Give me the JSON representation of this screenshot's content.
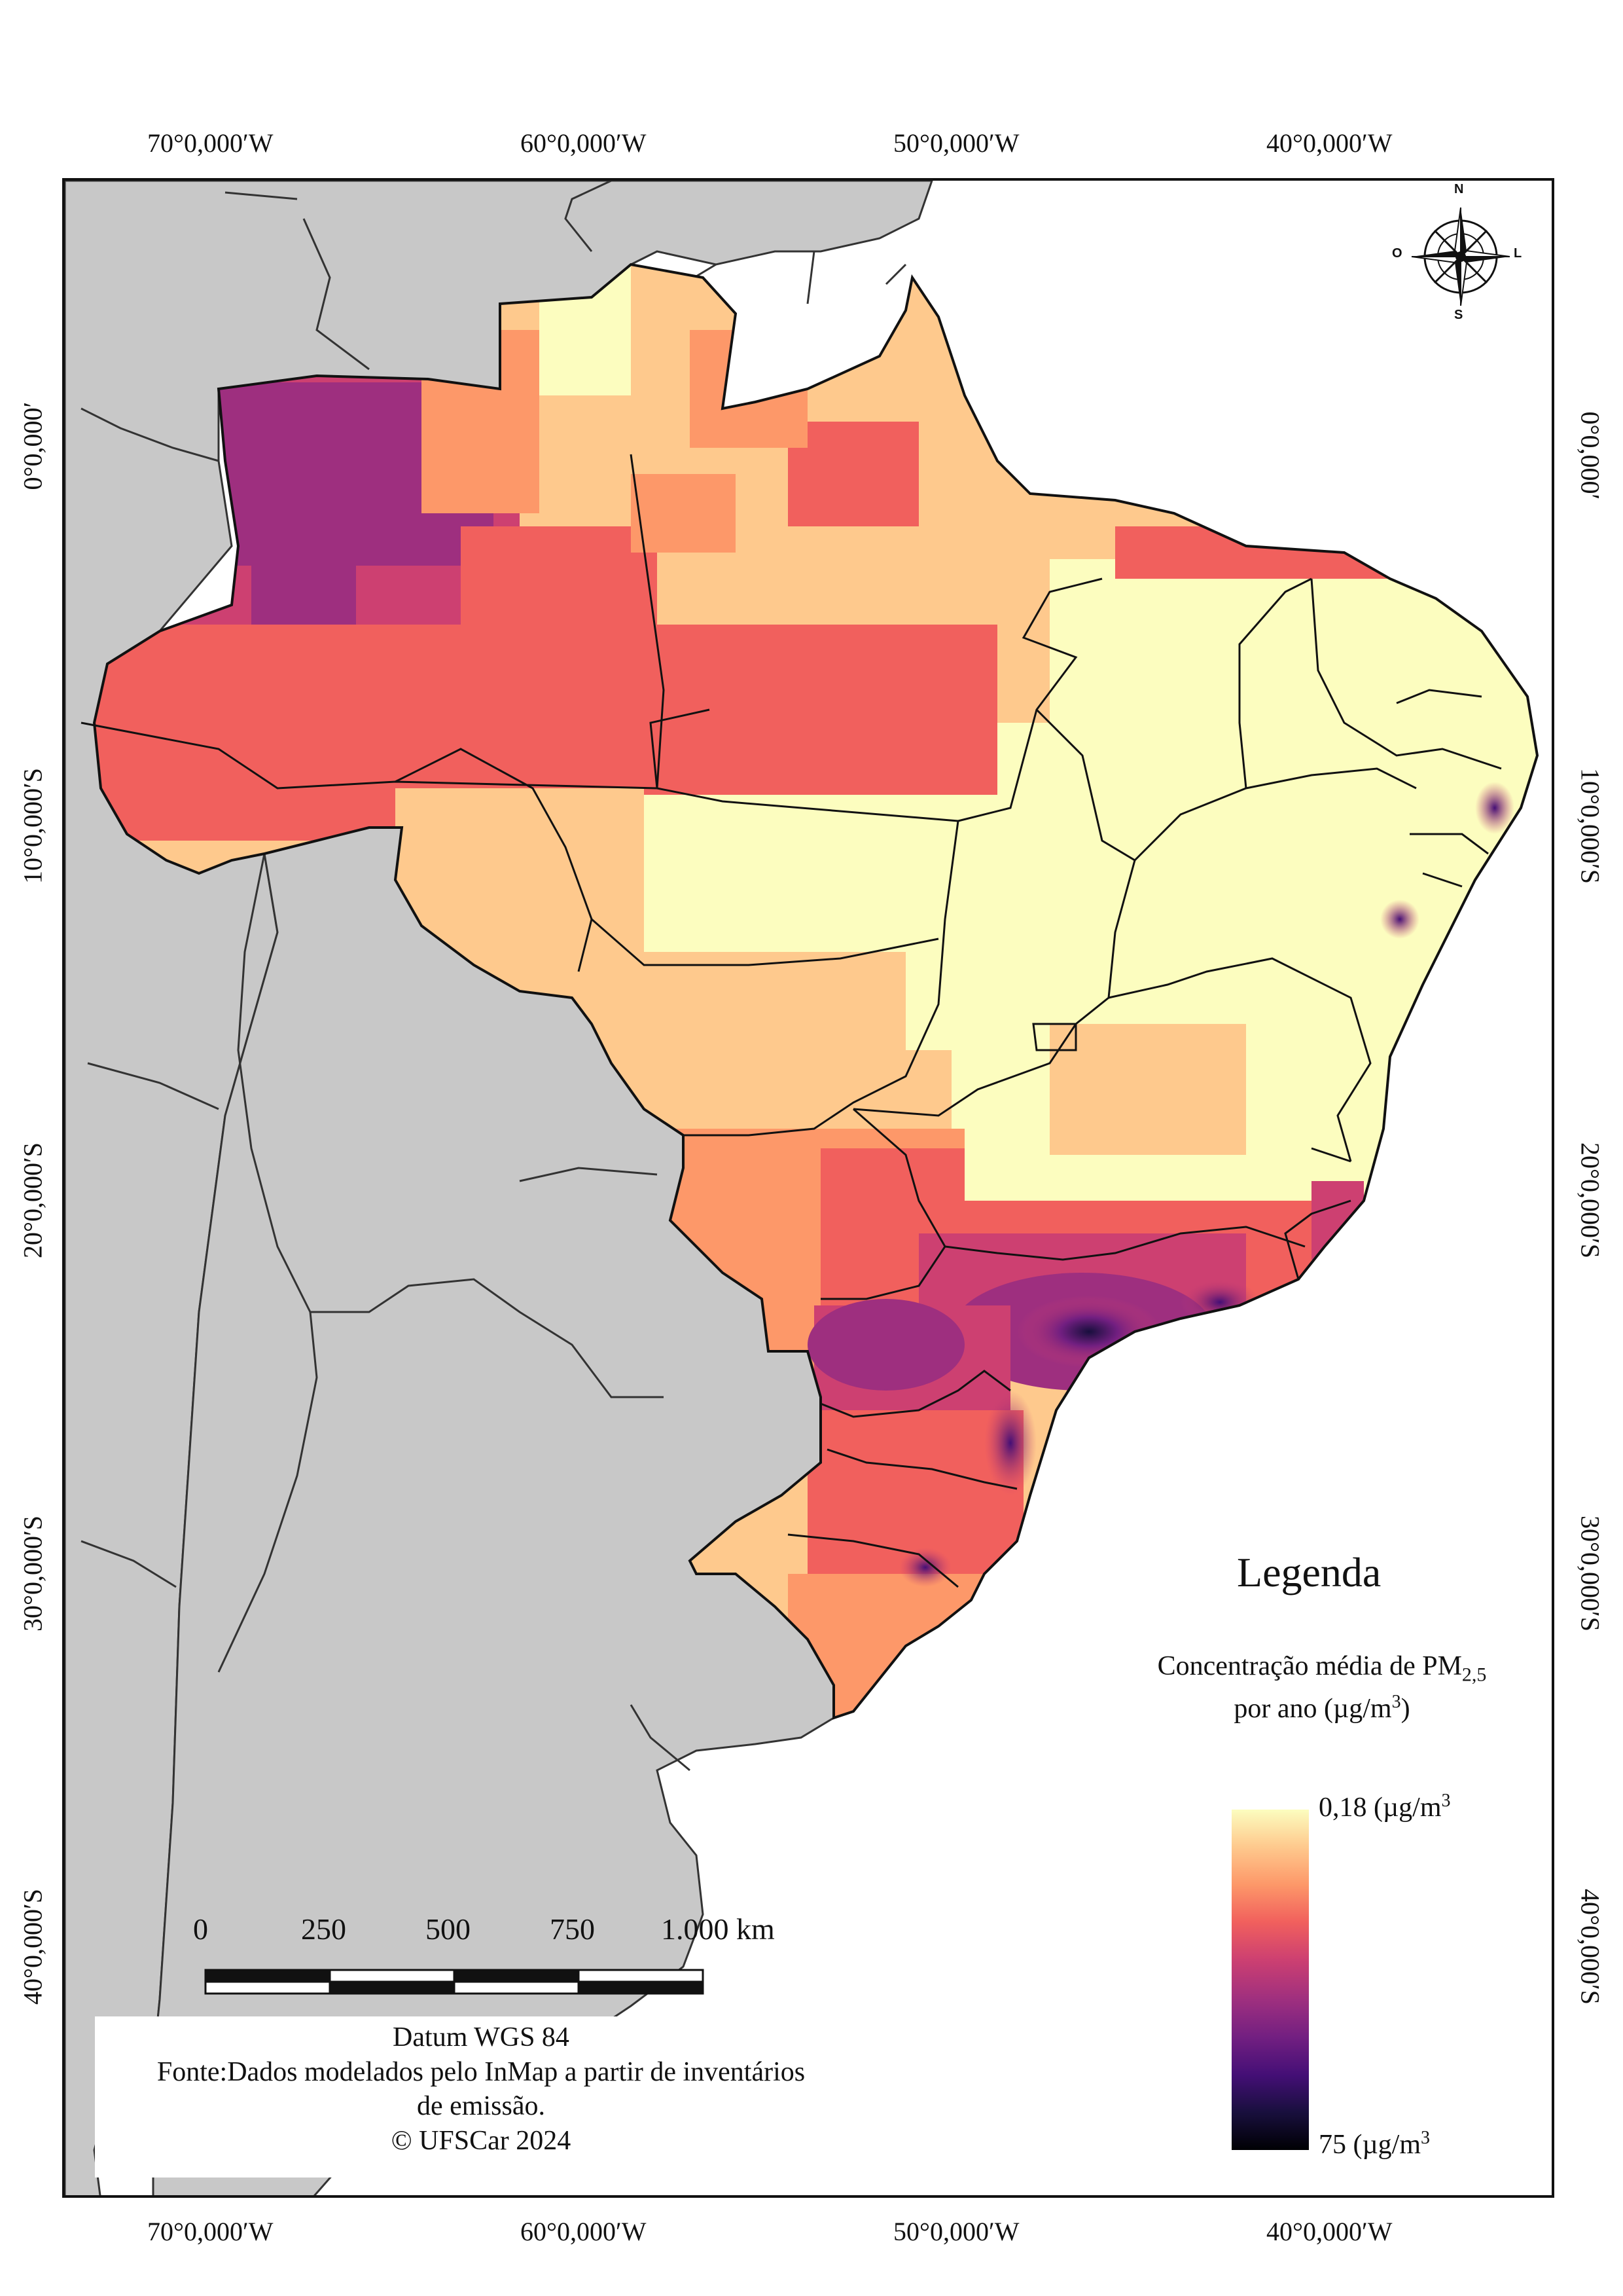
{
  "grid": {
    "longitude_labels": [
      "70°0,000′W",
      "60°0,000′W",
      "50°0,000′W",
      "40°0,000′W"
    ],
    "latitude_labels": [
      "0°0,000′",
      "10°0,000′S",
      "20°0,000′S",
      "30°0,000′S",
      "40°0,000′S"
    ]
  },
  "north_arrow": {
    "n": "N",
    "s": "S",
    "e": "L",
    "w": "O"
  },
  "legend": {
    "title": "Legenda",
    "subtitle_line1_prefix": "Concentração média de PM",
    "subtitle_subscript": "2,5",
    "subtitle_line2_prefix": "por ano (µg/m",
    "subtitle_superscript": "3",
    "subtitle_line2_suffix": ")",
    "max_label_prefix": "0,18 (µg/m",
    "max_label_sup": "3",
    "min_label_prefix": "75 (µg/m",
    "min_label_sup": "3",
    "colors": [
      "#fcfdbf",
      "#fec98d",
      "#fd9869",
      "#f1605d",
      "#cd4071",
      "#9e2f7f",
      "#721f81",
      "#440f76",
      "#180f3d",
      "#000004"
    ]
  },
  "scale_bar": {
    "labels": [
      "0",
      "250",
      "500",
      "750",
      "1.000 km"
    ]
  },
  "source": {
    "datum": "Datum WGS 84",
    "line2": "Fonte:Dados modelados pelo InMap a partir de inventários",
    "line3": "de emissão.",
    "copyright": "© UFSCar 2024"
  },
  "colors": {
    "land_outside": "#c8c8c8",
    "ocean": "#ffffff",
    "border": "#111111"
  }
}
